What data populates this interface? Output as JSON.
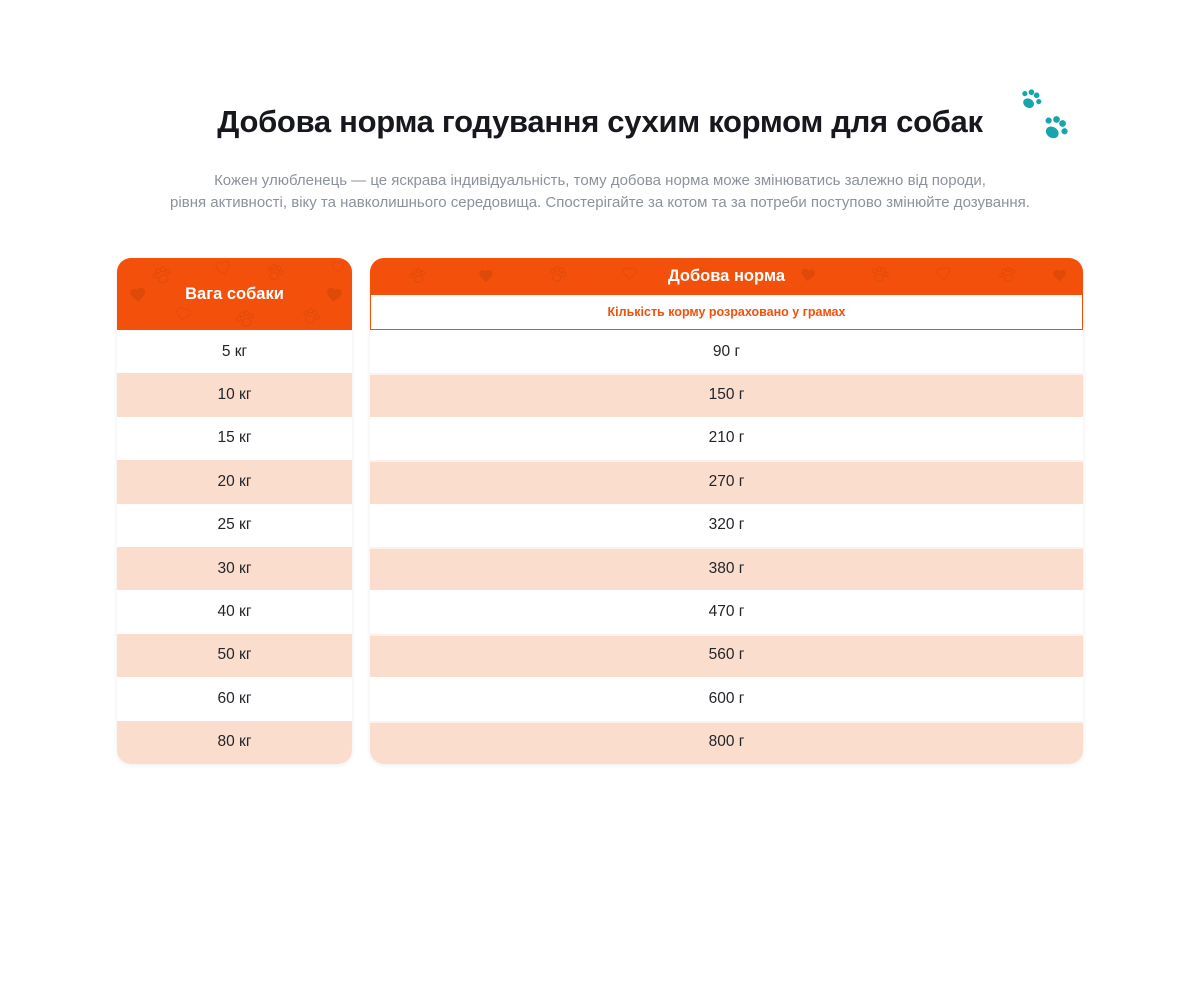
{
  "page": {
    "title": "Добова норма годування сухим кормом для собак",
    "subtitle_lines": [
      "Кожен улюбленець — це яскрава індивідуальність, тому добова норма може змінюватись залежно від породи,",
      "рівня активності, віку та навколишнього середовища. Спостерігайте за котом та за потреби поступово змінюйте дозування."
    ]
  },
  "colors": {
    "accent_orange": "#F3500B",
    "row_pink": "#FBDDCE",
    "paw_teal": "#16A5AE"
  },
  "icons": {
    "title_icon": "paw-prints-icon",
    "header_pattern": [
      "paw-icon",
      "heart-icon"
    ]
  },
  "weight_table": {
    "header": "Вага собаки",
    "rows": [
      "5 кг",
      "10 кг",
      "15 кг",
      "20 кг",
      "25 кг",
      "30 кг",
      "40 кг",
      "50 кг",
      "60 кг",
      "80 кг"
    ]
  },
  "norm_table": {
    "header": "Добова норма",
    "subheader": "Кількість корму розраховано у грамах",
    "rows": [
      "90 г",
      "150 г",
      "210 г",
      "270 г",
      "320 г",
      "380 г",
      "470 г",
      "560 г",
      "600 г",
      "800 г"
    ]
  }
}
